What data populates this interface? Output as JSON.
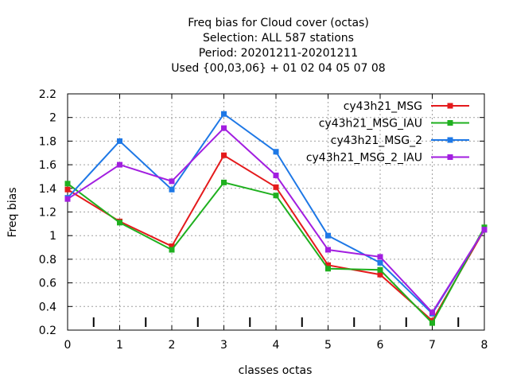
{
  "chart_data": {
    "type": "line",
    "title_lines": [
      "Freq bias  for Cloud cover (octas)",
      "Selection: ALL    587 stations",
      "Period: 20201211-20201211",
      "Used {00,03,06} + 01 02 04 05 07 08"
    ],
    "xlabel": "classes octas",
    "ylabel": "Freq bias",
    "xlim": [
      0,
      8
    ],
    "ylim": [
      0.2,
      2.2
    ],
    "x_ticks": [
      0,
      1,
      2,
      3,
      4,
      5,
      6,
      7,
      8
    ],
    "y_ticks": [
      0.2,
      0.4,
      0.6,
      0.8,
      1,
      1.2,
      1.4,
      1.6,
      1.8,
      2,
      2.2
    ],
    "y_tick_labels": [
      "0.2",
      "0.4",
      "0.6",
      "0.8",
      "1",
      "1.2",
      "1.4",
      "1.6",
      "1.8",
      "2",
      "2.2"
    ],
    "minor_marks_x": [
      0.5,
      1.5,
      2.5,
      3.5,
      4.5,
      5.5,
      6.5,
      7.5
    ],
    "grid": true,
    "legend_position": "top-right",
    "x": [
      0,
      1,
      2,
      3,
      4,
      5,
      6,
      7,
      8
    ],
    "series": [
      {
        "name": "cy43h21_MSG",
        "color": "#e41a1c",
        "values": [
          1.39,
          1.12,
          0.91,
          1.68,
          1.41,
          0.75,
          0.67,
          0.28,
          1.05
        ]
      },
      {
        "name": "cy43h21_MSG_IAU",
        "color": "#1fb01f",
        "values": [
          1.44,
          1.11,
          0.88,
          1.45,
          1.34,
          0.72,
          0.71,
          0.26,
          1.07
        ]
      },
      {
        "name": "cy43h21_MSG_2",
        "color": "#1e78e6",
        "values": [
          1.32,
          1.8,
          1.39,
          2.03,
          1.71,
          1.0,
          0.77,
          0.34,
          1.05
        ]
      },
      {
        "name": "cy43h21_MSG_2_IAU",
        "color": "#a21ee0",
        "values": [
          1.31,
          1.6,
          1.46,
          1.91,
          1.51,
          0.88,
          0.82,
          0.35,
          1.05
        ]
      }
    ]
  }
}
